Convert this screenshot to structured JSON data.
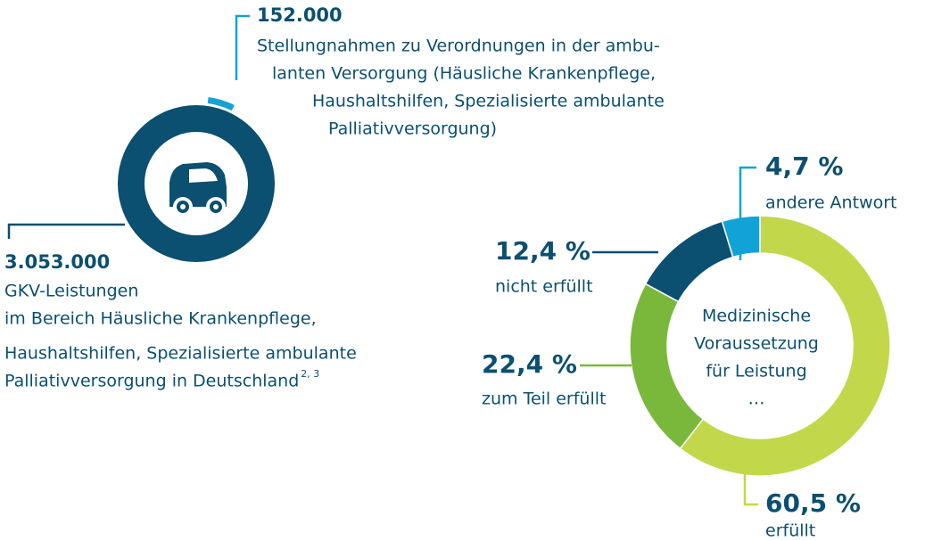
{
  "chart_data": [
    {
      "type": "ring",
      "categories": [
        [
          "Stellungnahmen zu Verordnungen in der ambu-",
          "lanten Versorgung (Häusliche Krankenpflege,",
          "Haushaltshilfen, Spezialisierte ambulante",
          "Palliativversorgung)"
        ],
        [
          "GKV-Leistungen",
          "im Bereich Häusliche Krankenpflege,",
          "Haushaltshilfen, Spezialisierte ambulante",
          "Palliativversorgung in Deutschland"
        ]
      ],
      "footnote": "2, 3",
      "values": [
        152000,
        3053000
      ],
      "value_labels": [
        "152.000",
        "3.053.000"
      ],
      "colors": [
        "#11a3d6",
        "#0b4f71"
      ]
    },
    {
      "type": "donut",
      "center_text": [
        "Medizinische",
        "Voraussetzung",
        "für Leistung",
        "…"
      ],
      "categories": [
        "erfüllt",
        "zum Teil erfüllt",
        "nicht erfüllt",
        "andere Antwort"
      ],
      "values": [
        60.5,
        22.4,
        12.4,
        4.7
      ],
      "value_labels": [
        "60,5 %",
        "22,4 %",
        "12,4 %",
        "4,7 %"
      ],
      "colors": [
        "#c2d84a",
        "#7ab83c",
        "#0b4f71",
        "#11a3d6"
      ]
    }
  ]
}
